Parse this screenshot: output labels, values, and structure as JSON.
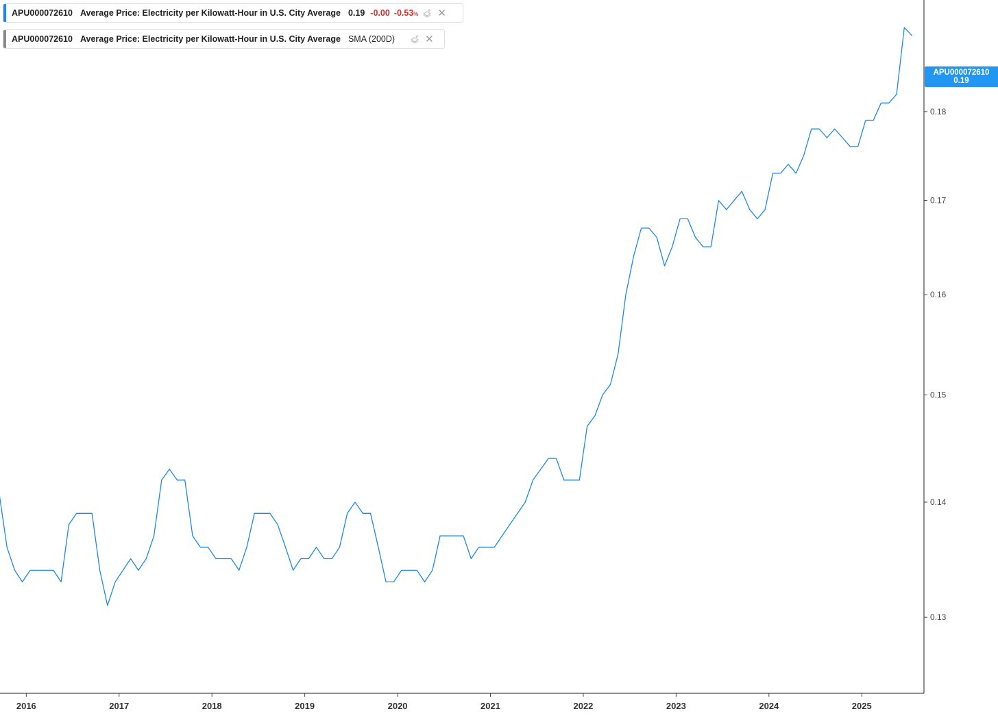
{
  "legend": [
    {
      "symbol": "APU000072610",
      "name": "Average Price: Electricity per Kilowatt-Hour in U.S. City Average",
      "value": "0.19",
      "change": "-0.00",
      "change_pct": "-0.53",
      "pct_sign": "%",
      "color": "#1e88e5"
    },
    {
      "symbol": "APU000072610",
      "name": "Average Price: Electricity per Kilowatt-Hour in U.S. City Average",
      "indicator": "SMA (200D)",
      "color": "#8a8a8a"
    }
  ],
  "price_tag": {
    "symbol": "APU000072610",
    "value": "0.19"
  },
  "chart_data": {
    "type": "line",
    "title": "",
    "xlabel": "",
    "ylabel": "",
    "line_color": "#1e88e5",
    "x_ticks": [
      "2016",
      "2017",
      "2018",
      "2019",
      "2020",
      "2021",
      "2022",
      "2023",
      "2024",
      "2025"
    ],
    "y_ticks": [
      "0.13",
      "0.14",
      "0.15",
      "0.16",
      "0.17",
      "0.18"
    ],
    "xlim": [
      2015.717,
      2025.67
    ],
    "ylim": [
      0.1238,
      0.1934
    ],
    "y_scale": "log",
    "grid": false,
    "series": [
      {
        "values": [
          [
            2015.708,
            0.1408
          ],
          [
            2015.792,
            0.136
          ],
          [
            2015.875,
            0.134
          ],
          [
            2015.958,
            0.133
          ],
          [
            2016.042,
            0.134
          ],
          [
            2016.125,
            0.134
          ],
          [
            2016.208,
            0.134
          ],
          [
            2016.292,
            0.134
          ],
          [
            2016.375,
            0.133
          ],
          [
            2016.458,
            0.138
          ],
          [
            2016.542,
            0.139
          ],
          [
            2016.625,
            0.139
          ],
          [
            2016.708,
            0.139
          ],
          [
            2016.792,
            0.134
          ],
          [
            2016.875,
            0.131
          ],
          [
            2016.958,
            0.133
          ],
          [
            2017.042,
            0.134
          ],
          [
            2017.125,
            0.135
          ],
          [
            2017.208,
            0.134
          ],
          [
            2017.292,
            0.135
          ],
          [
            2017.375,
            0.137
          ],
          [
            2017.458,
            0.142
          ],
          [
            2017.542,
            0.143
          ],
          [
            2017.625,
            0.142
          ],
          [
            2017.708,
            0.142
          ],
          [
            2017.792,
            0.137
          ],
          [
            2017.875,
            0.136
          ],
          [
            2017.958,
            0.136
          ],
          [
            2018.042,
            0.135
          ],
          [
            2018.125,
            0.135
          ],
          [
            2018.208,
            0.135
          ],
          [
            2018.292,
            0.134
          ],
          [
            2018.375,
            0.136
          ],
          [
            2018.458,
            0.139
          ],
          [
            2018.542,
            0.139
          ],
          [
            2018.625,
            0.139
          ],
          [
            2018.708,
            0.138
          ],
          [
            2018.792,
            0.136
          ],
          [
            2018.875,
            0.134
          ],
          [
            2018.958,
            0.135
          ],
          [
            2019.042,
            0.135
          ],
          [
            2019.125,
            0.136
          ],
          [
            2019.208,
            0.135
          ],
          [
            2019.292,
            0.135
          ],
          [
            2019.375,
            0.136
          ],
          [
            2019.458,
            0.139
          ],
          [
            2019.542,
            0.14
          ],
          [
            2019.625,
            0.139
          ],
          [
            2019.708,
            0.139
          ],
          [
            2019.792,
            0.136
          ],
          [
            2019.875,
            0.133
          ],
          [
            2019.958,
            0.133
          ],
          [
            2020.042,
            0.134
          ],
          [
            2020.125,
            0.134
          ],
          [
            2020.208,
            0.134
          ],
          [
            2020.292,
            0.133
          ],
          [
            2020.375,
            0.134
          ],
          [
            2020.458,
            0.137
          ],
          [
            2020.542,
            0.137
          ],
          [
            2020.625,
            0.137
          ],
          [
            2020.708,
            0.137
          ],
          [
            2020.792,
            0.135
          ],
          [
            2020.875,
            0.136
          ],
          [
            2020.958,
            0.136
          ],
          [
            2021.042,
            0.136
          ],
          [
            2021.125,
            0.137
          ],
          [
            2021.208,
            0.138
          ],
          [
            2021.292,
            0.139
          ],
          [
            2021.375,
            0.14
          ],
          [
            2021.458,
            0.142
          ],
          [
            2021.542,
            0.143
          ],
          [
            2021.625,
            0.144
          ],
          [
            2021.708,
            0.144
          ],
          [
            2021.792,
            0.142
          ],
          [
            2021.875,
            0.142
          ],
          [
            2021.958,
            0.142
          ],
          [
            2022.042,
            0.147
          ],
          [
            2022.125,
            0.148
          ],
          [
            2022.208,
            0.15
          ],
          [
            2022.292,
            0.151
          ],
          [
            2022.375,
            0.154
          ],
          [
            2022.458,
            0.16
          ],
          [
            2022.542,
            0.164
          ],
          [
            2022.625,
            0.167
          ],
          [
            2022.708,
            0.167
          ],
          [
            2022.792,
            0.166
          ],
          [
            2022.875,
            0.163
          ],
          [
            2022.958,
            0.165
          ],
          [
            2023.042,
            0.168
          ],
          [
            2023.125,
            0.168
          ],
          [
            2023.208,
            0.166
          ],
          [
            2023.292,
            0.165
          ],
          [
            2023.375,
            0.165
          ],
          [
            2023.458,
            0.17
          ],
          [
            2023.542,
            0.169
          ],
          [
            2023.625,
            0.17
          ],
          [
            2023.708,
            0.171
          ],
          [
            2023.792,
            0.169
          ],
          [
            2023.875,
            0.168
          ],
          [
            2023.958,
            0.169
          ],
          [
            2024.042,
            0.173
          ],
          [
            2024.125,
            0.173
          ],
          [
            2024.208,
            0.174
          ],
          [
            2024.292,
            0.173
          ],
          [
            2024.375,
            0.175
          ],
          [
            2024.458,
            0.178
          ],
          [
            2024.542,
            0.178
          ],
          [
            2024.625,
            0.177
          ],
          [
            2024.708,
            0.178
          ],
          [
            2024.792,
            0.177
          ],
          [
            2024.875,
            0.176
          ],
          [
            2024.958,
            0.176
          ],
          [
            2025.042,
            0.179
          ],
          [
            2025.125,
            0.179
          ],
          [
            2025.208,
            0.181
          ],
          [
            2025.292,
            0.181
          ],
          [
            2025.375,
            0.182
          ],
          [
            2025.458,
            0.19
          ],
          [
            2025.542,
            0.189
          ]
        ]
      }
    ]
  }
}
